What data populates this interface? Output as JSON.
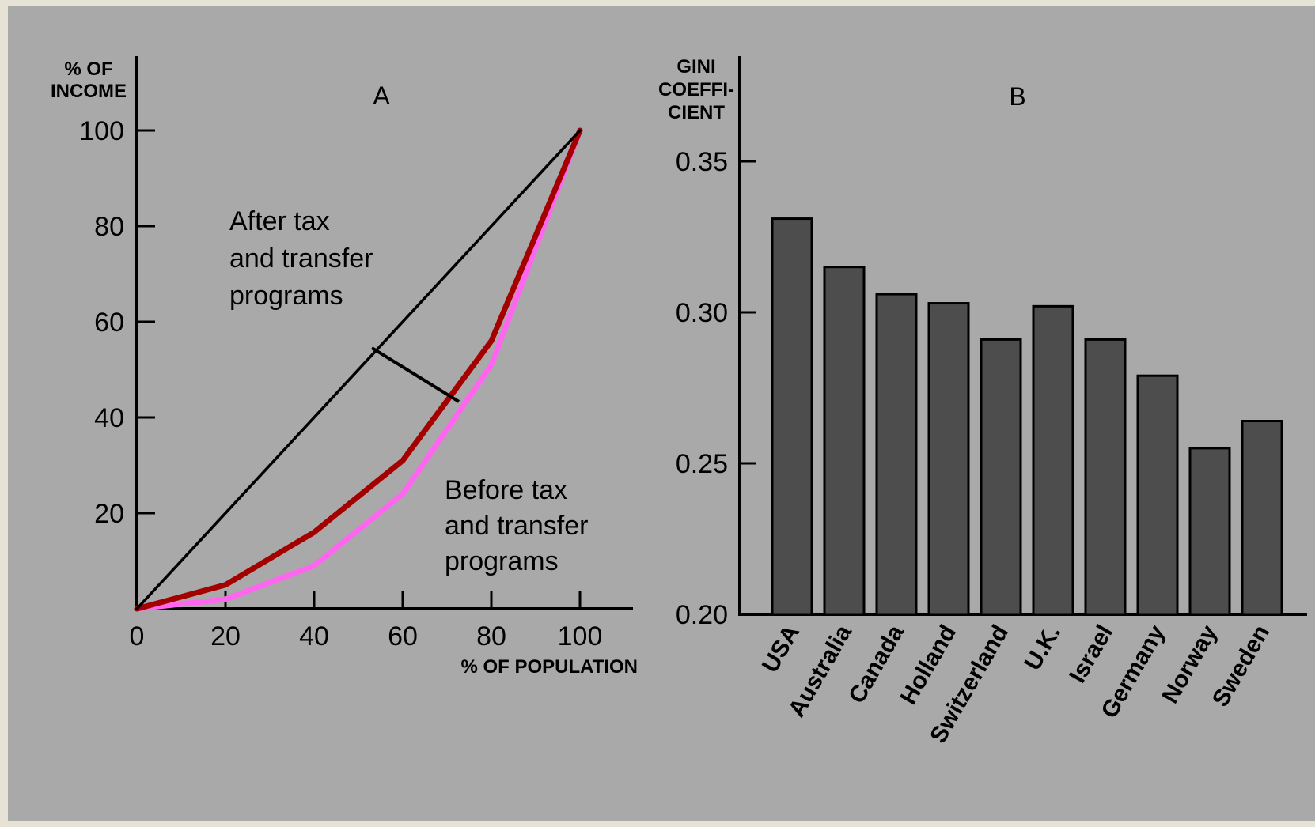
{
  "chart_data": [
    {
      "type": "line",
      "title": "A",
      "xlabel": "% OF POPULATION",
      "ylabel_lines": [
        "% OF",
        "INCOME"
      ],
      "xlim": [
        0,
        100
      ],
      "ylim": [
        0,
        100
      ],
      "xticks": [
        0,
        20,
        40,
        60,
        80,
        100
      ],
      "yticks": [
        20,
        40,
        60,
        80,
        100
      ],
      "series": [
        {
          "color": "#000000",
          "points": [
            [
              0,
              0
            ],
            [
              100,
              100
            ]
          ]
        },
        {
          "color": "#a40000",
          "points": [
            [
              0,
              0
            ],
            [
              20,
              5
            ],
            [
              40,
              16
            ],
            [
              60,
              31
            ],
            [
              80,
              56
            ],
            [
              100,
              100
            ]
          ]
        },
        {
          "color": "#ff66f0",
          "points": [
            [
              0,
              0
            ],
            [
              20,
              2
            ],
            [
              40,
              9
            ],
            [
              60,
              24
            ],
            [
              80,
              51
            ],
            [
              100,
              100
            ]
          ]
        }
      ],
      "annotations": [
        {
          "lines": [
            "After tax",
            "and transfer",
            "programs"
          ]
        },
        {
          "lines": [
            "Before tax",
            "and transfer",
            "programs"
          ]
        }
      ]
    },
    {
      "type": "bar",
      "title": "B",
      "ylabel_lines": [
        "GINI",
        "COEFFI-",
        "CIENT"
      ],
      "ylim": [
        0.2,
        0.36
      ],
      "yticks": [
        "0.20",
        "0.25",
        "0.30",
        "0.35"
      ],
      "bar_color": "#4d4d4d",
      "categories": [
        "USA",
        "Australia",
        "Canada",
        "Holland",
        "Switzerland",
        "U.K.",
        "Israel",
        "Germany",
        "Norway",
        "Sweden"
      ],
      "values": [
        0.331,
        0.315,
        0.306,
        0.303,
        0.291,
        0.302,
        0.291,
        0.279,
        0.255,
        0.264
      ]
    }
  ]
}
